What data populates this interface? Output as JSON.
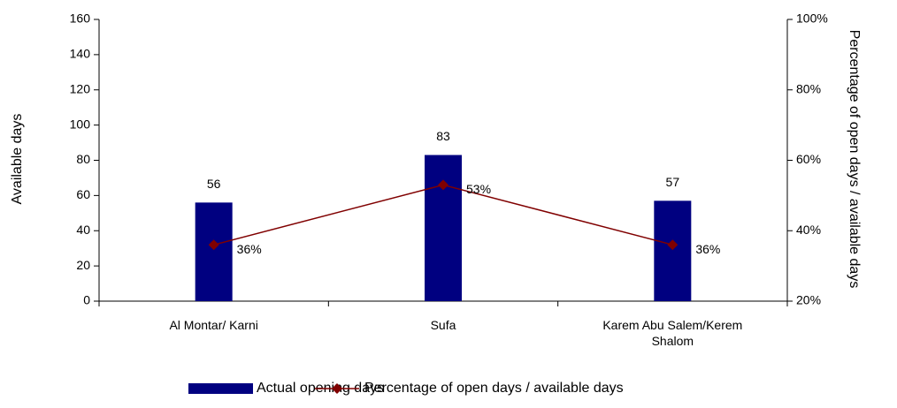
{
  "chart_data": {
    "type": "bar",
    "categories": [
      "Al Montar/ Karni",
      "Sufa",
      "Karem Abu Salem/Kerem Shalom"
    ],
    "series": [
      {
        "name": "Actual opening days",
        "type": "bar",
        "color": "#000080",
        "values": [
          56,
          83,
          57
        ]
      },
      {
        "name": "Percentage of open days / available days",
        "type": "line",
        "axis": "y2",
        "color": "#800000",
        "values": [
          36,
          53,
          36
        ],
        "value_labels": [
          "36%",
          "53%",
          "36%"
        ]
      }
    ],
    "ylabel": "Available days",
    "y2label": "Percentage of open days / available days",
    "ylim": [
      0,
      160
    ],
    "yticks": [
      0,
      20,
      40,
      60,
      80,
      100,
      120,
      140,
      160
    ],
    "y2lim": [
      20,
      100
    ],
    "y2ticks": [
      {
        "value": 20,
        "label": "20%"
      },
      {
        "value": 40,
        "label": "40%"
      },
      {
        "value": 60,
        "label": "60%"
      },
      {
        "value": 80,
        "label": "80%"
      },
      {
        "value": 100,
        "label": "100%"
      }
    ],
    "legend": "bottom"
  }
}
